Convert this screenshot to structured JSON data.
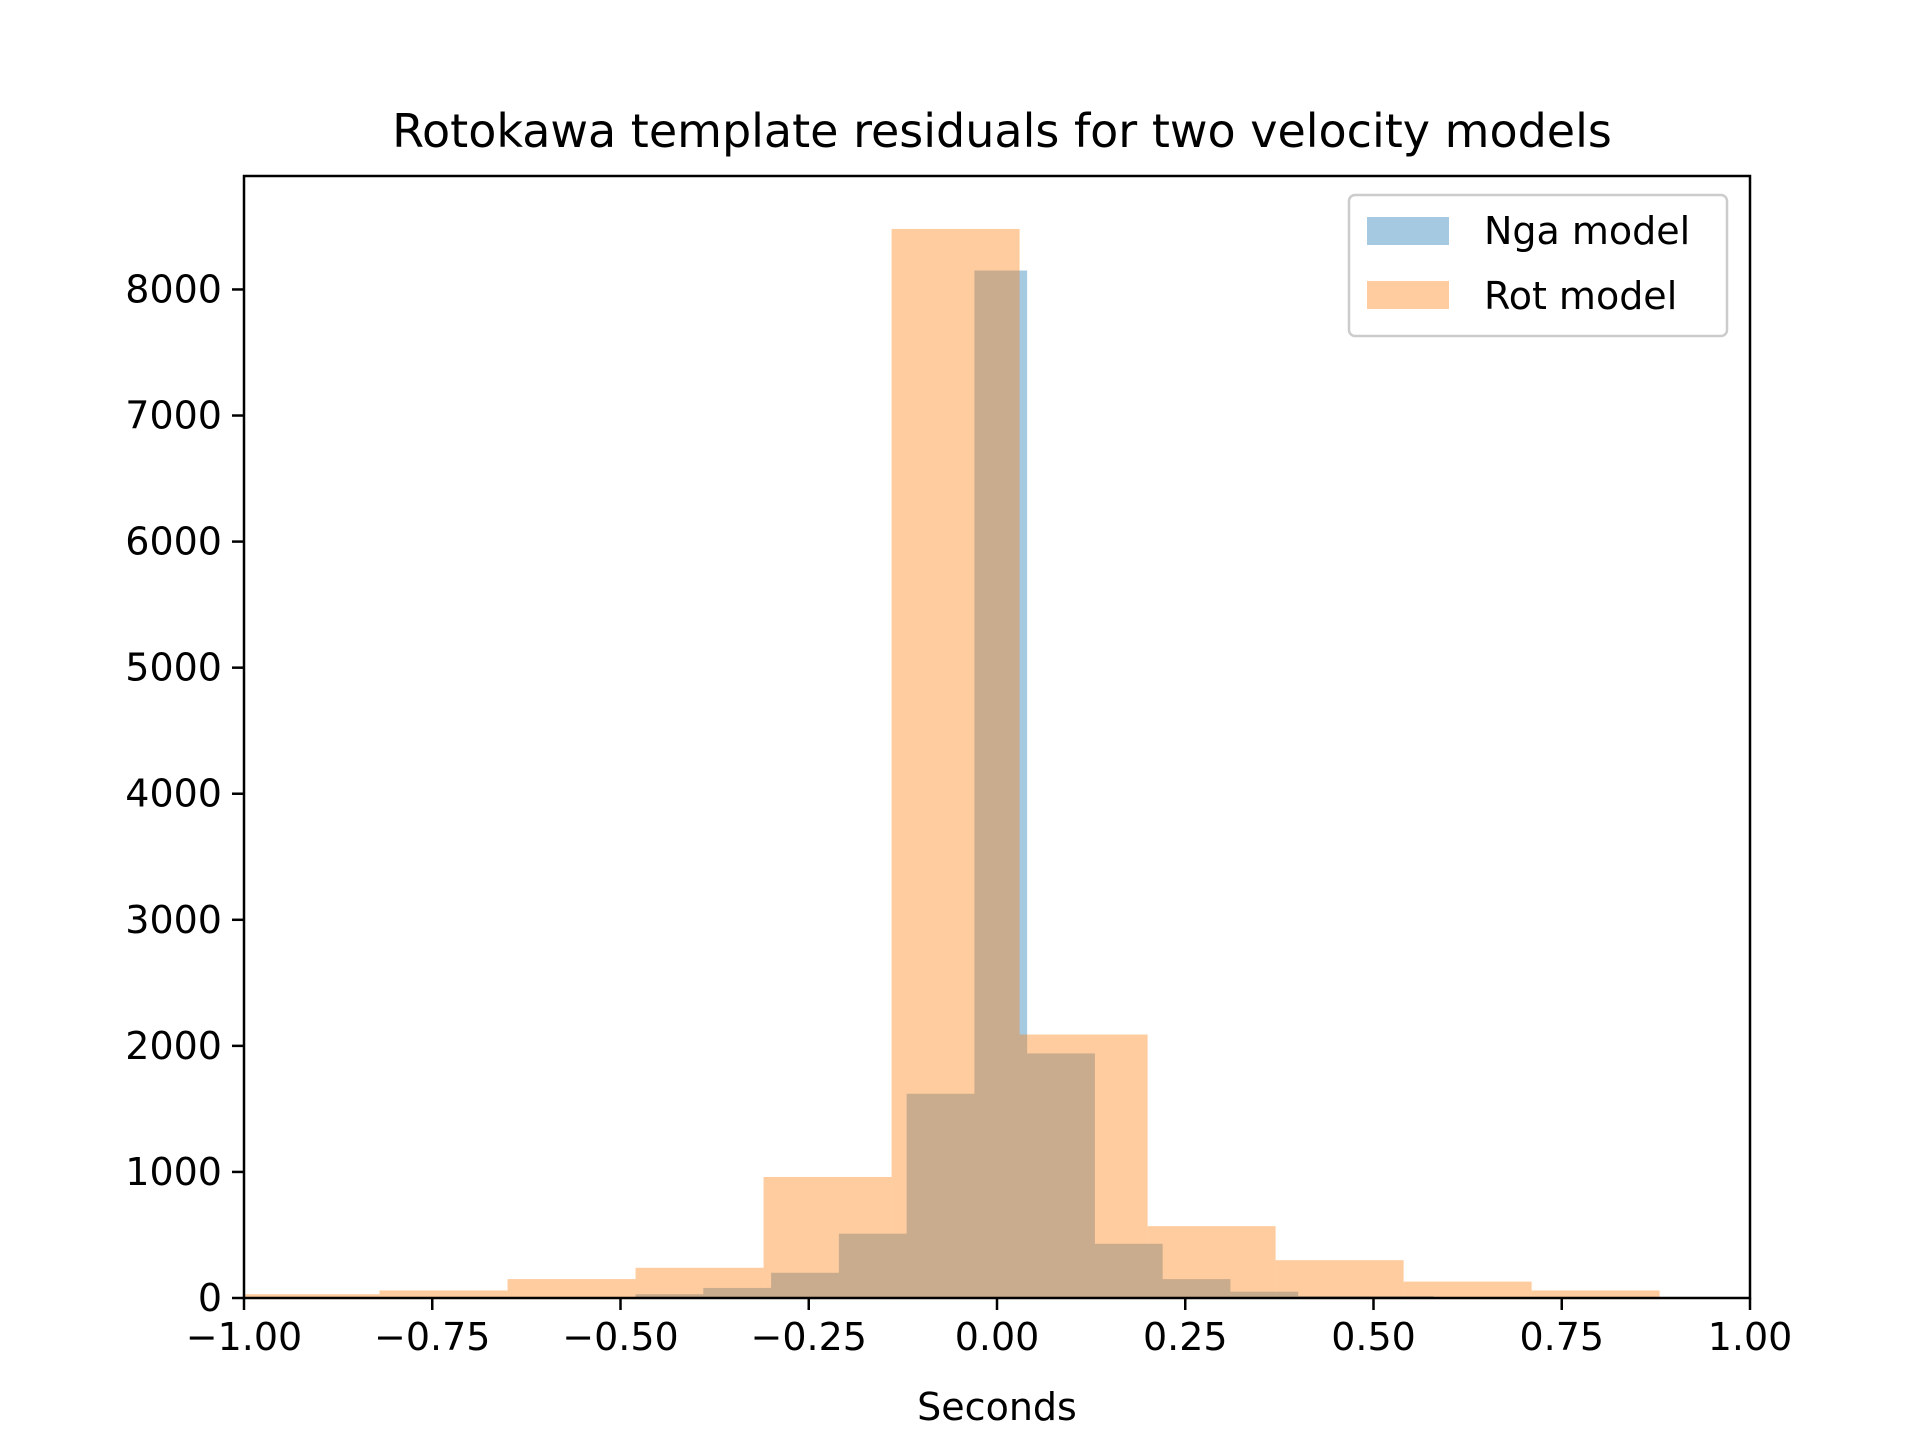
{
  "chart_data": {
    "type": "bar",
    "title": "Rotokawa template residuals for two velocity models",
    "xlabel": "Seconds",
    "ylabel": "",
    "xlim": [
      -1.0,
      1.0
    ],
    "ylim": [
      0,
      8900
    ],
    "x_ticks": [
      "−1.00",
      "−0.75",
      "−0.50",
      "−0.25",
      "0.00",
      "0.25",
      "0.50",
      "0.75",
      "1.00"
    ],
    "x_tick_values": [
      -1.0,
      -0.75,
      -0.5,
      -0.25,
      0.0,
      0.25,
      0.5,
      0.75,
      1.0
    ],
    "y_ticks": [
      "0",
      "1000",
      "2000",
      "3000",
      "4000",
      "5000",
      "6000",
      "7000",
      "8000"
    ],
    "y_tick_values": [
      0,
      1000,
      2000,
      3000,
      4000,
      5000,
      6000,
      7000,
      8000
    ],
    "legend_position": "top-right",
    "grid": false,
    "series": [
      {
        "name": "Nga model",
        "color": "#1f77b4",
        "opacity": 0.4,
        "bins": [
          {
            "x0": -0.48,
            "x1": -0.39,
            "value": 30
          },
          {
            "x0": -0.39,
            "x1": -0.3,
            "value": 80
          },
          {
            "x0": -0.3,
            "x1": -0.21,
            "value": 200
          },
          {
            "x0": -0.21,
            "x1": -0.12,
            "value": 510
          },
          {
            "x0": -0.12,
            "x1": -0.03,
            "value": 1620
          },
          {
            "x0": -0.03,
            "x1": 0.04,
            "value": 8150
          },
          {
            "x0": 0.04,
            "x1": 0.13,
            "value": 1940
          },
          {
            "x0": 0.13,
            "x1": 0.22,
            "value": 430
          },
          {
            "x0": 0.22,
            "x1": 0.31,
            "value": 150
          },
          {
            "x0": 0.31,
            "x1": 0.4,
            "value": 50
          },
          {
            "x0": 0.4,
            "x1": 0.58,
            "value": 15
          }
        ]
      },
      {
        "name": "Rot model",
        "color": "#ff7f0e",
        "opacity": 0.4,
        "bins": [
          {
            "x0": -1.0,
            "x1": -0.82,
            "value": 30
          },
          {
            "x0": -0.82,
            "x1": -0.65,
            "value": 60
          },
          {
            "x0": -0.65,
            "x1": -0.48,
            "value": 150
          },
          {
            "x0": -0.48,
            "x1": -0.31,
            "value": 240
          },
          {
            "x0": -0.31,
            "x1": -0.14,
            "value": 960
          },
          {
            "x0": -0.14,
            "x1": 0.03,
            "value": 8480
          },
          {
            "x0": 0.03,
            "x1": 0.2,
            "value": 2090
          },
          {
            "x0": 0.2,
            "x1": 0.37,
            "value": 570
          },
          {
            "x0": 0.37,
            "x1": 0.54,
            "value": 300
          },
          {
            "x0": 0.54,
            "x1": 0.71,
            "value": 130
          },
          {
            "x0": 0.71,
            "x1": 0.88,
            "value": 60
          }
        ]
      }
    ]
  }
}
